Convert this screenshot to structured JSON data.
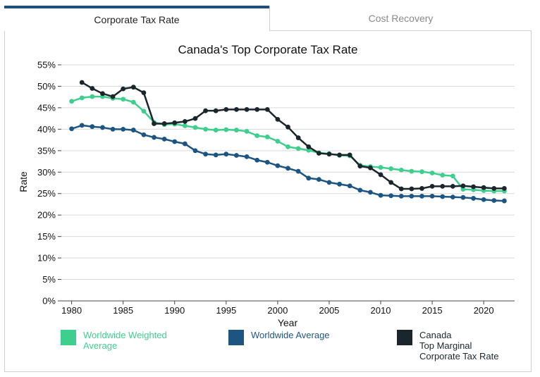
{
  "tabs": [
    {
      "label": "Corporate Tax Rate",
      "active": true
    },
    {
      "label": "Cost Recovery",
      "active": false
    }
  ],
  "colors": {
    "weighted": "#3ecf8e",
    "worldwide": "#1d5582",
    "canada": "#1b262c",
    "tab_accent": "#1f4e79"
  },
  "chart_data": {
    "type": "line",
    "title": "Canada's Top Corporate Tax Rate",
    "xlabel": "Year",
    "ylabel": "Rate",
    "xlim": [
      1979,
      2023
    ],
    "ylim": [
      0,
      55
    ],
    "x_ticks": [
      "1980",
      "1985",
      "1990",
      "1995",
      "2000",
      "2005",
      "2010",
      "2015",
      "2020"
    ],
    "y_ticks": [
      "0%",
      "5%",
      "10%",
      "15%",
      "20%",
      "25%",
      "30%",
      "35%",
      "40%",
      "45%",
      "50%",
      "55%"
    ],
    "grid": true,
    "legend_position": "bottom",
    "series": [
      {
        "name": "Worldwide Weighted Average",
        "color": "#3ecf8e",
        "x": [
          1980,
          1981,
          1982,
          1983,
          1984,
          1985,
          1986,
          1987,
          1988,
          1989,
          1990,
          1991,
          1992,
          1993,
          1994,
          1995,
          1996,
          1997,
          1998,
          1999,
          2000,
          2001,
          2002,
          2003,
          2004,
          2005,
          2006,
          2007,
          2008,
          2009,
          2010,
          2011,
          2012,
          2013,
          2014,
          2015,
          2016,
          2017,
          2018,
          2019,
          2020,
          2021,
          2022
        ],
        "values": [
          46.5,
          47.3,
          47.6,
          47.6,
          47.2,
          47.0,
          46.3,
          44.2,
          41.6,
          41.1,
          41.2,
          40.8,
          40.4,
          40.0,
          39.8,
          39.9,
          39.8,
          39.5,
          38.5,
          38.2,
          37.2,
          35.9,
          35.5,
          35.1,
          34.5,
          34.3,
          33.9,
          33.8,
          31.6,
          31.3,
          31.1,
          30.8,
          30.5,
          30.2,
          30.1,
          29.8,
          29.3,
          29.1,
          26.0,
          25.9,
          25.7,
          25.6,
          25.6
        ]
      },
      {
        "name": "Worldwide Average",
        "color": "#1d5582",
        "x": [
          1980,
          1981,
          1982,
          1983,
          1984,
          1985,
          1986,
          1987,
          1988,
          1989,
          1990,
          1991,
          1992,
          1993,
          1994,
          1995,
          1996,
          1997,
          1998,
          1999,
          2000,
          2001,
          2002,
          2003,
          2004,
          2005,
          2006,
          2007,
          2008,
          2009,
          2010,
          2011,
          2012,
          2013,
          2014,
          2015,
          2016,
          2017,
          2018,
          2019,
          2020,
          2021,
          2022
        ],
        "values": [
          40.1,
          40.9,
          40.6,
          40.4,
          40.0,
          40.0,
          39.8,
          38.7,
          38.1,
          37.7,
          37.1,
          36.6,
          35.0,
          34.2,
          34.0,
          34.2,
          33.9,
          33.6,
          32.8,
          32.3,
          31.5,
          30.9,
          30.2,
          28.6,
          28.3,
          27.6,
          27.2,
          26.8,
          25.8,
          25.3,
          24.6,
          24.5,
          24.4,
          24.4,
          24.4,
          24.4,
          24.3,
          24.2,
          24.1,
          23.9,
          23.6,
          23.4,
          23.3
        ]
      },
      {
        "name": "Canada\nTop Marginal\nCorporate Tax Rate",
        "color": "#1b262c",
        "x": [
          1981,
          1982,
          1983,
          1984,
          1985,
          1986,
          1987,
          1988,
          1989,
          1990,
          1991,
          1992,
          1993,
          1994,
          1995,
          1996,
          1997,
          1998,
          1999,
          2000,
          2001,
          2002,
          2003,
          2004,
          2005,
          2006,
          2007,
          2008,
          2009,
          2010,
          2011,
          2012,
          2013,
          2014,
          2015,
          2016,
          2017,
          2018,
          2019,
          2020,
          2021,
          2022
        ],
        "values": [
          50.9,
          49.5,
          48.3,
          47.6,
          49.4,
          49.8,
          48.5,
          41.3,
          41.3,
          41.5,
          41.8,
          42.5,
          44.3,
          44.3,
          44.6,
          44.6,
          44.6,
          44.6,
          44.6,
          42.3,
          40.5,
          38.0,
          35.9,
          34.4,
          34.2,
          34.0,
          34.0,
          31.4,
          31.0,
          29.4,
          27.6,
          26.1,
          26.1,
          26.2,
          26.7,
          26.7,
          26.7,
          26.8,
          26.6,
          26.4,
          26.2,
          26.2
        ]
      }
    ]
  }
}
